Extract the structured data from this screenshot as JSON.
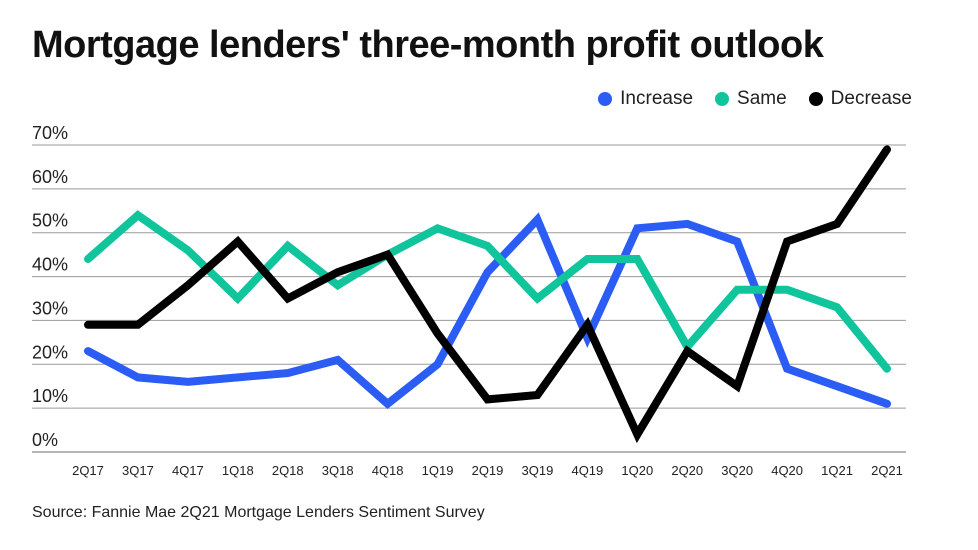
{
  "chart_data": {
    "type": "line",
    "title": "Mortgage lenders' three-month profit outlook",
    "xlabel": "",
    "ylabel": "",
    "categories": [
      "2Q17",
      "3Q17",
      "4Q17",
      "1Q18",
      "2Q18",
      "3Q18",
      "4Q18",
      "1Q19",
      "2Q19",
      "3Q19",
      "4Q19",
      "1Q20",
      "2Q20",
      "3Q20",
      "4Q20",
      "1Q21",
      "2Q21"
    ],
    "ylim": [
      0,
      70
    ],
    "yticks": [
      0,
      10,
      20,
      30,
      40,
      50,
      60,
      70
    ],
    "ytick_labels": [
      "0%",
      "10%",
      "20%",
      "30%",
      "40%",
      "50%",
      "60%",
      "70%"
    ],
    "grid": true,
    "legend_position": "top-right",
    "series": [
      {
        "name": "Increase",
        "color": "#2b5df5",
        "values": [
          23,
          17,
          16,
          17,
          18,
          21,
          11,
          20,
          41,
          53,
          26,
          51,
          52,
          48,
          19,
          15,
          11
        ]
      },
      {
        "name": "Same",
        "color": "#10c59b",
        "values": [
          44,
          54,
          46,
          35,
          47,
          38,
          45,
          51,
          47,
          35,
          44,
          44,
          24,
          37,
          37,
          33,
          19
        ]
      },
      {
        "name": "Decrease",
        "color": "#000000",
        "values": [
          29,
          29,
          38,
          48,
          35,
          41,
          45,
          27,
          12,
          13,
          29,
          4,
          23,
          15,
          48,
          52,
          69
        ]
      }
    ]
  },
  "source": "Source: Fannie Mae 2Q21 Mortgage Lenders Sentiment Survey"
}
